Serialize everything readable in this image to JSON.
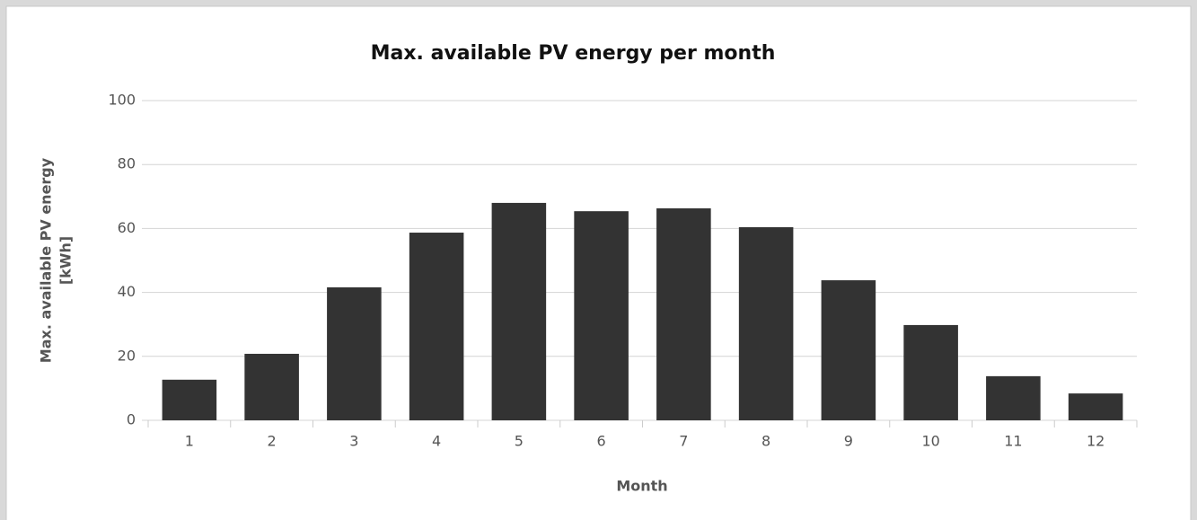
{
  "chart_data": {
    "type": "bar",
    "title": "Max. available PV energy per month",
    "y_label": [
      "Max. available PV energy",
      "[kWh]"
    ],
    "x_label": "Month",
    "categories": [
      "1",
      "2",
      "3",
      "4",
      "5",
      "6",
      "7",
      "8",
      "9",
      "10",
      "11",
      "12"
    ],
    "values": [
      12.7,
      20.8,
      41.6,
      58.7,
      68.0,
      65.4,
      66.3,
      60.4,
      43.8,
      29.8,
      13.8,
      8.4
    ],
    "color": "#333333",
    "ylim": [
      0,
      100
    ],
    "yticks": [
      0,
      20,
      40,
      60,
      80,
      100
    ],
    "grid": true
  }
}
